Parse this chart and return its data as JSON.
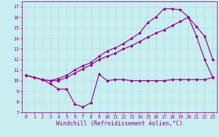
{
  "xlabel": "Windchill (Refroidissement éolien,°C)",
  "background_color": "#c8eef0",
  "line_color": "#990099",
  "xlim": [
    -0.5,
    23.5
  ],
  "ylim": [
    7,
    17.5
  ],
  "xticks": [
    0,
    1,
    2,
    3,
    4,
    5,
    6,
    7,
    8,
    9,
    10,
    11,
    12,
    13,
    14,
    15,
    16,
    17,
    18,
    19,
    20,
    21,
    22,
    23
  ],
  "yticks": [
    7,
    8,
    9,
    10,
    11,
    12,
    13,
    14,
    15,
    16,
    17
  ],
  "series1_x": [
    0,
    1,
    2,
    3,
    4,
    5,
    6,
    7,
    8,
    9,
    10,
    11,
    12,
    13,
    14,
    15,
    16,
    17,
    18,
    19,
    20,
    21,
    22,
    23
  ],
  "series1_y": [
    10.5,
    10.3,
    10.1,
    9.7,
    9.2,
    9.2,
    7.8,
    7.5,
    7.9,
    10.6,
    10.0,
    10.1,
    10.1,
    10.0,
    10.0,
    10.0,
    10.0,
    10.0,
    10.1,
    10.1,
    10.1,
    10.1,
    10.1,
    10.3
  ],
  "series2_x": [
    0,
    1,
    2,
    3,
    4,
    5,
    6,
    7,
    8,
    9,
    10,
    11,
    12,
    13,
    14,
    15,
    16,
    17,
    18,
    19,
    20,
    21,
    22,
    23
  ],
  "series2_y": [
    10.5,
    10.3,
    10.1,
    10.0,
    10.0,
    10.3,
    10.7,
    11.1,
    11.5,
    12.0,
    12.3,
    12.6,
    13.0,
    13.3,
    13.7,
    14.1,
    14.5,
    14.8,
    15.2,
    15.6,
    16.0,
    15.1,
    14.2,
    12.0
  ],
  "series3_x": [
    0,
    1,
    2,
    3,
    4,
    5,
    6,
    7,
    8,
    9,
    10,
    11,
    12,
    13,
    14,
    15,
    16,
    17,
    18,
    19,
    20,
    21,
    22,
    23
  ],
  "series3_y": [
    10.5,
    10.3,
    10.1,
    10.0,
    10.2,
    10.5,
    11.0,
    11.4,
    11.7,
    12.3,
    12.8,
    13.1,
    13.5,
    14.0,
    14.5,
    15.5,
    16.0,
    16.8,
    16.8,
    16.7,
    16.0,
    14.2,
    12.0,
    10.3
  ],
  "marker": "D",
  "marker_size": 2,
  "linewidth": 0.9,
  "tick_fontsize": 5,
  "xlabel_fontsize": 6,
  "grid_color": "#aadddd",
  "grid_linewidth": 0.5
}
